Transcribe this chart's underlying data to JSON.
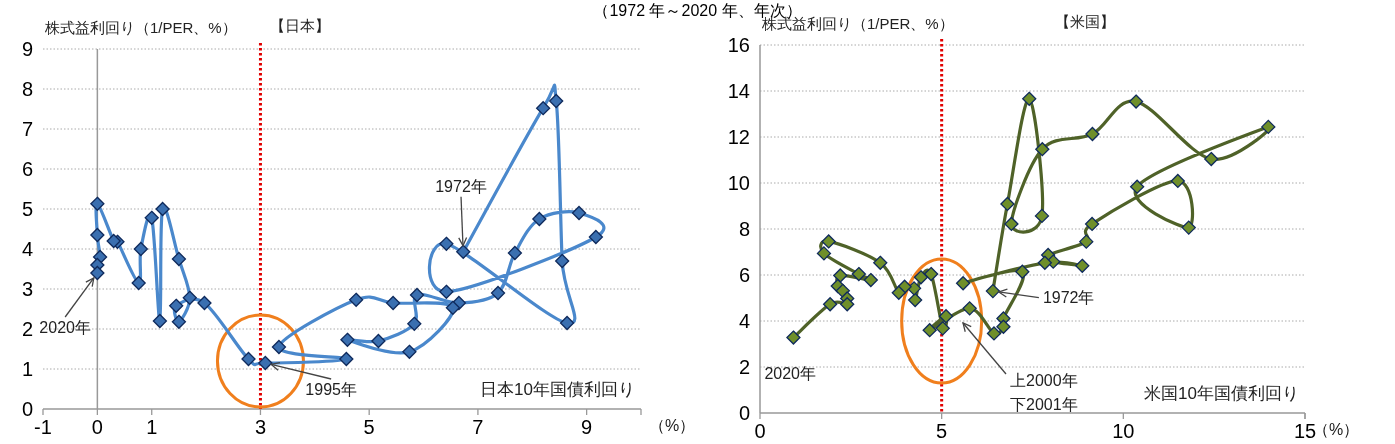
{
  "chart_data": [
    {
      "type": "line",
      "subtitle": "（1972 年～2020 年、年次）",
      "title": "【日本】",
      "ylabel": "株式益利回り（1/PER、%）",
      "xlabel": "日本10年国債利回り",
      "color": "#4a88cc",
      "marker": "diamond",
      "grid": "y",
      "xlim": [
        -1,
        10
      ],
      "ylim": [
        0,
        9
      ],
      "xticks": [
        -1,
        0,
        1,
        3,
        5,
        7,
        9
      ],
      "yticks": [
        0,
        1,
        2,
        3,
        4,
        5,
        6,
        7,
        8,
        9
      ],
      "ref_lines": [
        {
          "axis": "x",
          "value": 3,
          "color": "#e00000",
          "line_style": "dotted"
        }
      ],
      "x": [
        6.73,
        8.2,
        8.44,
        8.55,
        8.64,
        6.42,
        6.42,
        9.17,
        8.86,
        8.13,
        7.68,
        7.37,
        6.65,
        5.88,
        5.83,
        5.17,
        4.6,
        5.74,
        6.54,
        5.44,
        4.76,
        3.34,
        4.58,
        3.09,
        2.78,
        1.97,
        1.45,
        1.5,
        1.7,
        1.5,
        1.2,
        1.15,
        1.0,
        0.8,
        0.76,
        0.37,
        0.3,
        0,
        0,
        0.05,
        0,
        0
      ],
      "values": [
        3.93,
        7.52,
        7.7,
        3.7,
        2.15,
        4.13,
        2.93,
        4.3,
        4.9,
        4.75,
        3.9,
        2.9,
        2.65,
        2.85,
        2.13,
        1.7,
        1.73,
        1.43,
        2.53,
        2.65,
        2.73,
        1.55,
        1.25,
        1.15,
        1.25,
        2.65,
        2.58,
        2.18,
        2.78,
        3.75,
        5.0,
        2.2,
        4.78,
        4.0,
        3.15,
        4.18,
        4.2,
        5.13,
        4.35,
        3.8,
        3.6,
        3.4
      ],
      "annotations": [
        {
          "text": "1972年",
          "x": 6.73,
          "y": 3.93
        },
        {
          "text": "1995年",
          "x": 3.09,
          "y": 1.15
        },
        {
          "text": "2020年",
          "x": 0,
          "y": 3.4
        },
        "（%）"
      ]
    },
    {
      "type": "line",
      "title": "【米国】",
      "ylabel": "株式益利回り（1/PER、%）",
      "xlabel": "米国10年国債利回り",
      "color": "#4f6228",
      "marker": "diamond",
      "grid": "y",
      "xlim": [
        0,
        15
      ],
      "ylim": [
        0,
        16
      ],
      "xticks": [
        0,
        5,
        10,
        15
      ],
      "yticks": [
        0,
        2,
        4,
        6,
        8,
        10,
        12,
        14,
        16
      ],
      "ref_lines": [
        {
          "axis": "x",
          "value": 5,
          "color": "#e00000",
          "line_style": "dotted"
        }
      ],
      "x": [
        6.41,
        6.81,
        7.41,
        7.76,
        6.92,
        7.77,
        9.15,
        10.35,
        12.42,
        13.99,
        10.38,
        11.8,
        11.5,
        9.14,
        8.98,
        7.93,
        8.07,
        8.87,
        7.84,
        5.59,
        7.22,
        6.7,
        6.7,
        6.44,
        5.77,
        4.67,
        5.12,
        5.03,
        4.71,
        4.43,
        4.27,
        4.24,
        3.98,
        3.82,
        3.31,
        1.89,
        1.76,
        2.72,
        3.05,
        2.21,
        2.14,
        2.28,
        2.4,
        2.4,
        1.93,
        0.92
      ],
      "values": [
        5.3,
        9.09,
        13.66,
        8.57,
        8.22,
        11.47,
        12.13,
        13.54,
        11.04,
        12.44,
        9.84,
        8.06,
        10.09,
        8.22,
        7.45,
        6.87,
        6.58,
        6.4,
        6.53,
        5.64,
        6.14,
        4.11,
        3.75,
        3.46,
        4.55,
        3.6,
        4.21,
        3.68,
        6.04,
        5.9,
        4.91,
        5.42,
        5.49,
        5.23,
        6.53,
        7.46,
        6.94,
        6.04,
        5.78,
        5.98,
        5.52,
        5.31,
        4.98,
        4.73,
        4.73,
        3.28
      ],
      "annotations": [
        {
          "text": "1972年",
          "x": 6.41,
          "y": 5.3
        },
        "上2000年",
        "下2001年",
        {
          "text": "2020年",
          "x": 0.92,
          "y": 3.28
        },
        "（%）"
      ]
    }
  ]
}
